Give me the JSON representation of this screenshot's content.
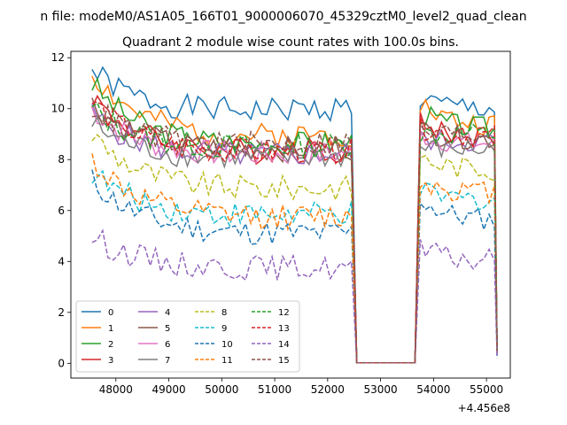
{
  "chart_data": {
    "type": "line",
    "suptitle": "n file: modeM0/AS1A05_166T01_9000006070_45329cztM0_level2_quad_clean",
    "title": "Quadrant 2 module wise count rates with 100.0s bins.",
    "xlabel": "",
    "ylabel": "",
    "x_offset_label": "+4.456e8",
    "x_ticks": [
      48000,
      49000,
      50000,
      51000,
      52000,
      53000,
      54000,
      55000
    ],
    "x_tick_labels": [
      "48000",
      "49000",
      "50000",
      "51000",
      "52000",
      "53000",
      "54000",
      "55000"
    ],
    "y_ticks": [
      0,
      2,
      4,
      6,
      8,
      10,
      12
    ],
    "y_tick_labels": [
      "0",
      "2",
      "4",
      "6",
      "8",
      "10",
      "12"
    ],
    "xlim": [
      47150,
      55450
    ],
    "ylim": [
      -0.58,
      12.25
    ],
    "grid": false,
    "legend_position": "lower-left",
    "legend_columns": 4,
    "segments": {
      "active1": [
        47550,
        52450
      ],
      "gap": [
        52550,
        53650
      ],
      "active2": [
        53750,
        55150
      ]
    },
    "series": [
      {
        "name": "0",
        "color": "#1f77b4",
        "dash": "solid",
        "level": 9.6,
        "start": 11.5,
        "post": 10.0,
        "seed": 1
      },
      {
        "name": "1",
        "color": "#ff7f0e",
        "dash": "solid",
        "level": 8.6,
        "start": 11.4,
        "post": 9.3,
        "seed": 2
      },
      {
        "name": "2",
        "color": "#2ca02c",
        "dash": "solid",
        "level": 8.3,
        "start": 11.0,
        "post": 9.2,
        "seed": 3
      },
      {
        "name": "3",
        "color": "#d62728",
        "dash": "solid",
        "level": 8.0,
        "start": 10.5,
        "post": 8.9,
        "seed": 4
      },
      {
        "name": "4",
        "color": "#9467bd",
        "dash": "solid",
        "level": 7.9,
        "start": 9.8,
        "post": 8.7,
        "seed": 5
      },
      {
        "name": "5",
        "color": "#8c564b",
        "dash": "solid",
        "level": 8.1,
        "start": 10.2,
        "post": 8.8,
        "seed": 6
      },
      {
        "name": "6",
        "color": "#e377c2",
        "dash": "solid",
        "level": 7.9,
        "start": 10.0,
        "post": 8.6,
        "seed": 7
      },
      {
        "name": "7",
        "color": "#7f7f7f",
        "dash": "solid",
        "level": 7.8,
        "start": 9.4,
        "post": 8.4,
        "seed": 8
      },
      {
        "name": "8",
        "color": "#bcbd22",
        "dash": "dashed",
        "level": 6.6,
        "start": 9.0,
        "post": 7.6,
        "seed": 9
      },
      {
        "name": "9",
        "color": "#17becf",
        "dash": "dashed",
        "level": 5.6,
        "start": 7.5,
        "post": 6.4,
        "seed": 10
      },
      {
        "name": "10",
        "color": "#1f77b4",
        "dash": "dashed",
        "level": 4.9,
        "start": 7.2,
        "post": 5.6,
        "seed": 11
      },
      {
        "name": "11",
        "color": "#ff7f0e",
        "dash": "dashed",
        "level": 5.5,
        "start": 8.0,
        "post": 6.7,
        "seed": 12
      },
      {
        "name": "12",
        "color": "#2ca02c",
        "dash": "dashed",
        "level": 8.2,
        "start": 10.0,
        "post": 9.0,
        "seed": 13
      },
      {
        "name": "13",
        "color": "#d62728",
        "dash": "dashed",
        "level": 8.0,
        "start": 10.3,
        "post": 8.9,
        "seed": 14
      },
      {
        "name": "14",
        "color": "#9467bd",
        "dash": "dashed",
        "level": 3.6,
        "start": 5.0,
        "post": 4.0,
        "seed": 15
      },
      {
        "name": "15",
        "color": "#8c564b",
        "dash": "dashed",
        "level": 8.3,
        "start": 10.1,
        "post": 9.0,
        "seed": 16
      }
    ]
  }
}
